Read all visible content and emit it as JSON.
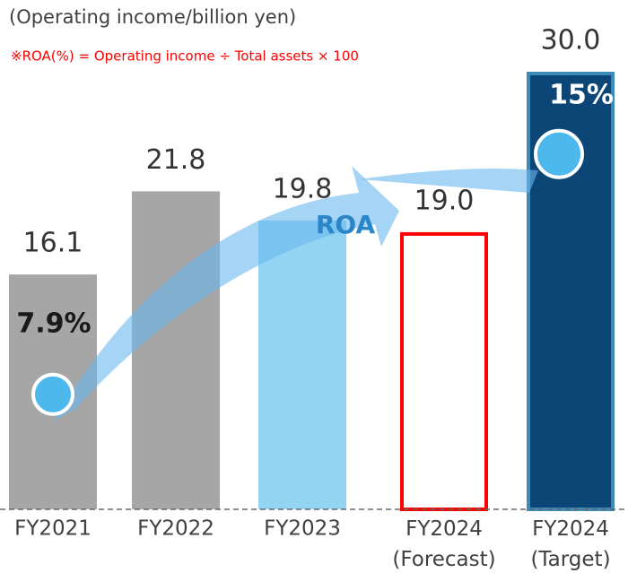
{
  "chart_data": {
    "type": "bar",
    "subtitle": "(Operating income/billion yen)",
    "annotation": "※ROA(%) = Operating income ÷ Total assets × 100",
    "categories": [
      "FY2021",
      "FY2022",
      "FY2023",
      "FY2024 (Forecast)",
      "FY2024 (Target)"
    ],
    "values": [
      16.1,
      21.8,
      19.8,
      19.0,
      30.0
    ],
    "value_labels": [
      "16.1",
      "21.8",
      "19.8",
      "19.0",
      "30.0"
    ],
    "fills": [
      "#a6a6a6",
      "#a6a6a6",
      "#93d4f3",
      "none",
      "#0b4677"
    ],
    "strokes": [
      "none",
      "none",
      "none",
      "#ff0000",
      "#3d8bb8"
    ],
    "roa": {
      "name": "ROA",
      "color": "#4db8ec",
      "points": [
        0,
        4
      ],
      "values": [
        7.9,
        15
      ],
      "value_labels": [
        "7.9%",
        "15%"
      ],
      "label_colors": [
        "#1a1a1a",
        "#ffffff"
      ]
    }
  }
}
